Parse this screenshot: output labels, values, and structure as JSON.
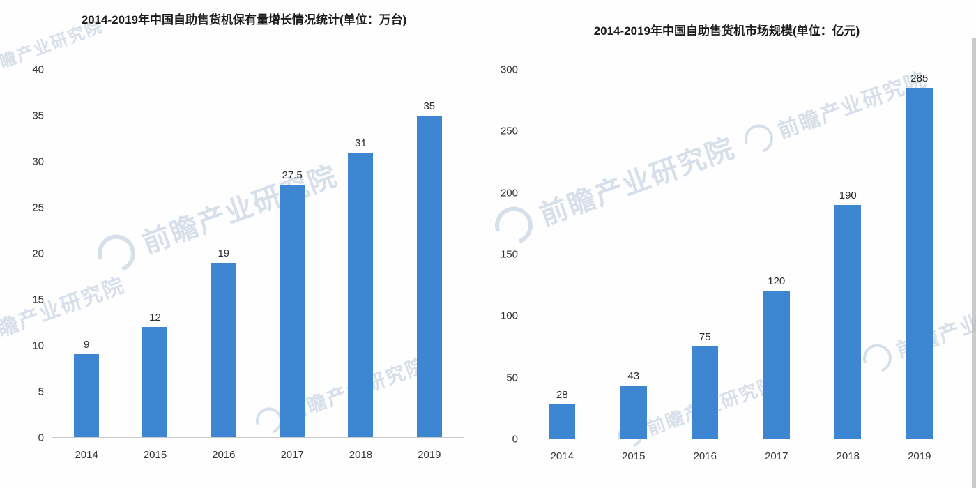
{
  "watermark": {
    "text": "前瞻产业研究院"
  },
  "chart_data": [
    {
      "type": "bar",
      "title": "2014-2019年中国自助售货机保有量增长情况统计(单位：万台)",
      "categories": [
        "2014",
        "2015",
        "2016",
        "2017",
        "2018",
        "2019"
      ],
      "values": [
        9,
        12,
        19,
        27.5,
        31,
        35
      ],
      "value_labels": [
        "9",
        "12",
        "19",
        "27.5",
        "31",
        "35"
      ],
      "xlabel": "",
      "ylabel": "",
      "ylim": [
        0,
        40
      ],
      "yticks": [
        0,
        5,
        10,
        15,
        20,
        25,
        30,
        35,
        40
      ],
      "bar_color": "#3d86d2",
      "grid": false,
      "legend": "none"
    },
    {
      "type": "bar",
      "title": "2014-2019年中国自助售货机市场规模(单位：亿元)",
      "categories": [
        "2014",
        "2015",
        "2016",
        "2017",
        "2018",
        "2019"
      ],
      "values": [
        28,
        43,
        75,
        120,
        190,
        285
      ],
      "value_labels": [
        "28",
        "43",
        "75",
        "120",
        "190",
        "285"
      ],
      "xlabel": "",
      "ylabel": "",
      "ylim": [
        0,
        300
      ],
      "yticks": [
        0,
        50,
        100,
        150,
        200,
        250,
        300
      ],
      "bar_color": "#3d86d2",
      "grid": false,
      "legend": "none"
    }
  ]
}
